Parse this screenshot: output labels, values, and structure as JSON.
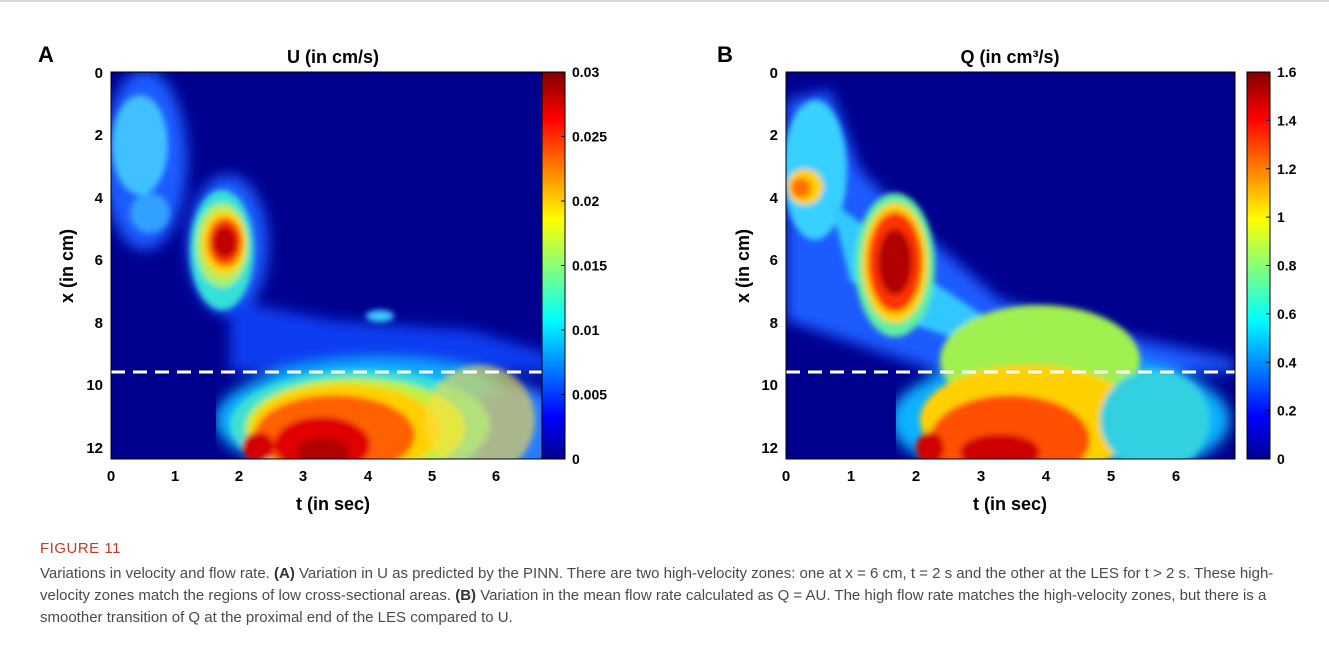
{
  "chart_data": [
    {
      "type": "heatmap",
      "panel_label": "A",
      "title": "U (in cm/s)",
      "xlabel": "t (in sec)",
      "ylabel": "x (in cm)",
      "xlim": [
        0,
        6.9
      ],
      "ylim": [
        0,
        12.4
      ],
      "y_reversed": true,
      "x_ticks": [
        "0",
        "1",
        "2",
        "3",
        "4",
        "5",
        "6"
      ],
      "y_ticks": [
        "0",
        "2",
        "4",
        "6",
        "8",
        "10",
        "12"
      ],
      "colorbar": {
        "range": [
          0,
          0.03
        ],
        "ticks": [
          "0",
          "0.005",
          "0.01",
          "0.015",
          "0.02",
          "0.025",
          "0.03"
        ]
      },
      "reference_line": {
        "x_cm": 9.6,
        "style": "dashed",
        "color": "#ffffff"
      },
      "colormap": "jet",
      "field_regions": [
        {
          "t": 0.55,
          "x": 2.3,
          "rel_value": 0.42
        },
        {
          "t": 0.3,
          "x": 4.0,
          "rel_value": 0.3
        },
        {
          "t": 1.85,
          "x": 5.6,
          "rel_value": 0.97
        },
        {
          "t": 1.5,
          "x": 7.2,
          "rel_value": 0.3
        },
        {
          "t": 4.1,
          "x": 7.8,
          "rel_value": 0.38
        },
        {
          "t": 3.4,
          "x": 12.0,
          "rel_value": 0.93
        },
        {
          "t": 2.3,
          "x": 12.2,
          "rel_value": 0.9
        },
        {
          "t": 4.5,
          "x": 11.0,
          "rel_value": 0.8
        },
        {
          "t": 5.8,
          "x": 11.8,
          "rel_value": 0.5
        }
      ]
    },
    {
      "type": "heatmap",
      "panel_label": "B",
      "title": "Q (in cm³/s)",
      "xlabel": "t (in sec)",
      "ylabel": "x (in cm)",
      "xlim": [
        0,
        6.9
      ],
      "ylim": [
        0,
        12.4
      ],
      "y_reversed": true,
      "x_ticks": [
        "0",
        "1",
        "2",
        "3",
        "4",
        "5",
        "6"
      ],
      "y_ticks": [
        "0",
        "2",
        "4",
        "6",
        "8",
        "10",
        "12"
      ],
      "colorbar": {
        "range": [
          0,
          1.6
        ],
        "ticks": [
          "0",
          "0.2",
          "0.4",
          "0.6",
          "0.8",
          "1",
          "1.2",
          "1.4",
          "1.6"
        ]
      },
      "reference_line": {
        "x_cm": 9.6,
        "style": "dashed",
        "color": "#ffffff"
      },
      "colormap": "jet",
      "field_regions": [
        {
          "t": 0.25,
          "x": 3.6,
          "rel_value": 0.78
        },
        {
          "t": 0.5,
          "x": 2.5,
          "rel_value": 0.4
        },
        {
          "t": 1.7,
          "x": 6.2,
          "rel_value": 0.95
        },
        {
          "t": 2.6,
          "x": 8.2,
          "rel_value": 0.45
        },
        {
          "t": 3.9,
          "x": 9.0,
          "rel_value": 0.7
        },
        {
          "t": 3.3,
          "x": 11.8,
          "rel_value": 0.92
        },
        {
          "t": 2.25,
          "x": 12.2,
          "rel_value": 0.9
        },
        {
          "t": 4.6,
          "x": 10.8,
          "rel_value": 0.75
        },
        {
          "t": 5.8,
          "x": 11.6,
          "rel_value": 0.45
        }
      ]
    }
  ],
  "figure_label": "FIGURE 11",
  "caption": {
    "intro": "Variations in velocity and flow rate. ",
    "a_tag": "(A)",
    "a_text": " Variation in U as predicted by the PINN. There are two high-velocity zones: one at x = 6 cm, t = 2 s and the other at the LES for t > 2 s. These high-velocity zones match the regions of low cross-sectional areas. ",
    "b_tag": "(B)",
    "b_text": " Variation in the mean flow rate calculated as Q = AU. The high flow rate matches the high-velocity zones, but there is a smoother transition of Q at the proximal end of the LES compared to U."
  }
}
